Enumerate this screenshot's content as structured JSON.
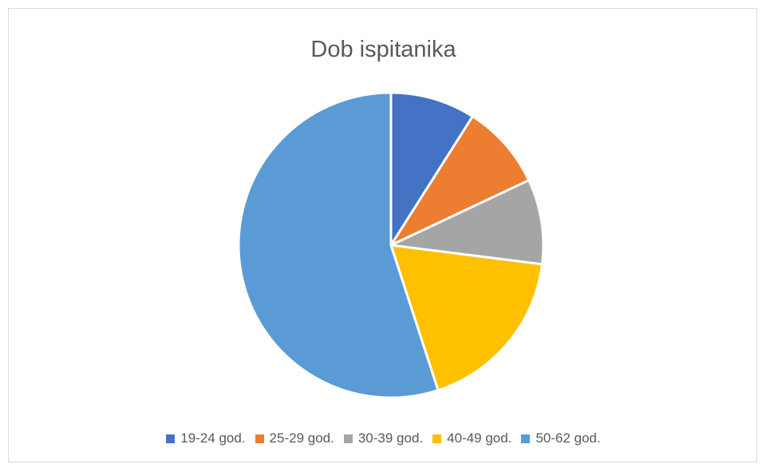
{
  "chart_data": {
    "type": "pie",
    "title": "Dob ispitanika",
    "categories": [
      "19-24 god.",
      "25-29 god.",
      "30-39 god.",
      "40-49 god.",
      "50-62 god."
    ],
    "values": [
      9,
      9,
      9,
      18,
      55
    ],
    "colors": [
      "#4472C4",
      "#ED7D31",
      "#A5A5A5",
      "#FFC000",
      "#5B9BD5"
    ],
    "legend_position": "bottom"
  }
}
